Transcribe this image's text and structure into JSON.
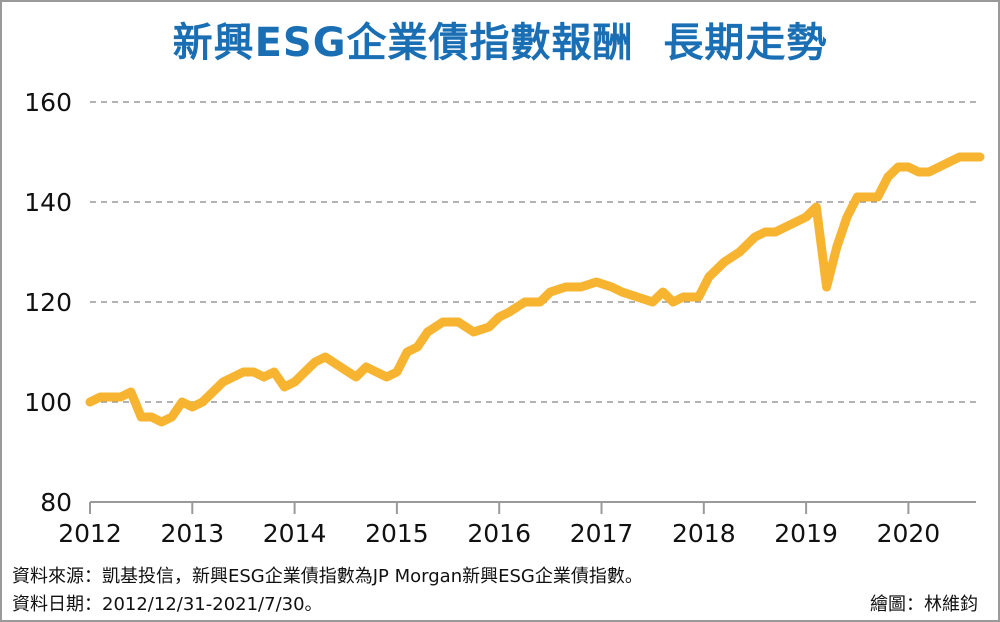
{
  "title": "新興ESG企業債指數報酬  長期走勢",
  "notes": {
    "source": "資料來源：凱基投信，新興ESG企業債指數為JP Morgan新興ESG企業債指數。",
    "date": "資料日期：2012/12/31-2021/7/30。",
    "credit": "繪圖：林維鈞"
  },
  "colors": {
    "line": "#f7b431",
    "title": "#1a6fb4",
    "grid": "#9a9a9a"
  },
  "chart_data": {
    "type": "line",
    "title": "新興ESG企業債指數報酬  長期走勢",
    "xlabel": "",
    "ylabel": "",
    "ylim": [
      80,
      160
    ],
    "yticks": [
      80,
      100,
      120,
      140,
      160
    ],
    "xticks": [
      "2012",
      "2013",
      "2014",
      "2015",
      "2016",
      "2017",
      "2018",
      "2019",
      "2020"
    ],
    "grid": "horizontal dashed",
    "series": [
      {
        "x": [
          2012.0,
          2012.1,
          2012.3,
          2012.4,
          2012.5,
          2012.6,
          2012.7,
          2012.8,
          2012.9,
          2013.0,
          2013.1,
          2013.2,
          2013.3,
          2013.4,
          2013.5,
          2013.6,
          2013.7,
          2013.8,
          2013.9,
          2014.0,
          2014.1,
          2014.2,
          2014.3,
          2014.45,
          2014.6,
          2014.7,
          2014.8,
          2014.9,
          2015.0,
          2015.1,
          2015.2,
          2015.3,
          2015.45,
          2015.6,
          2015.75,
          2015.9,
          2016.0,
          2016.1,
          2016.25,
          2016.4,
          2016.5,
          2016.65,
          2016.8,
          2016.95,
          2017.1,
          2017.2,
          2017.35,
          2017.5,
          2017.6,
          2017.7,
          2017.8,
          2017.95,
          2018.05,
          2018.2,
          2018.35,
          2018.5,
          2018.6,
          2018.7,
          2018.8,
          2018.9,
          2019.0,
          2019.1,
          2019.2,
          2019.3,
          2019.4,
          2019.5,
          2019.6,
          2019.7,
          2019.8,
          2019.9,
          2020.0,
          2020.1,
          2020.2,
          2020.3,
          2020.4,
          2020.5,
          2020.6,
          2020.7
        ],
        "y": [
          100,
          101,
          101,
          102,
          97,
          97,
          96,
          97,
          100,
          99,
          100,
          102,
          104,
          105,
          106,
          106,
          105,
          106,
          103,
          104,
          106,
          108,
          109,
          107,
          105,
          107,
          106,
          105,
          106,
          110,
          111,
          114,
          116,
          116,
          114,
          115,
          117,
          118,
          120,
          120,
          122,
          123,
          123,
          124,
          123,
          122,
          121,
          120,
          122,
          120,
          121,
          121,
          125,
          128,
          130,
          133,
          134,
          134,
          135,
          136,
          137,
          139,
          123,
          131,
          137,
          141,
          141,
          141,
          145,
          147,
          147,
          146,
          146,
          147,
          148,
          149,
          149,
          149
        ]
      }
    ]
  }
}
